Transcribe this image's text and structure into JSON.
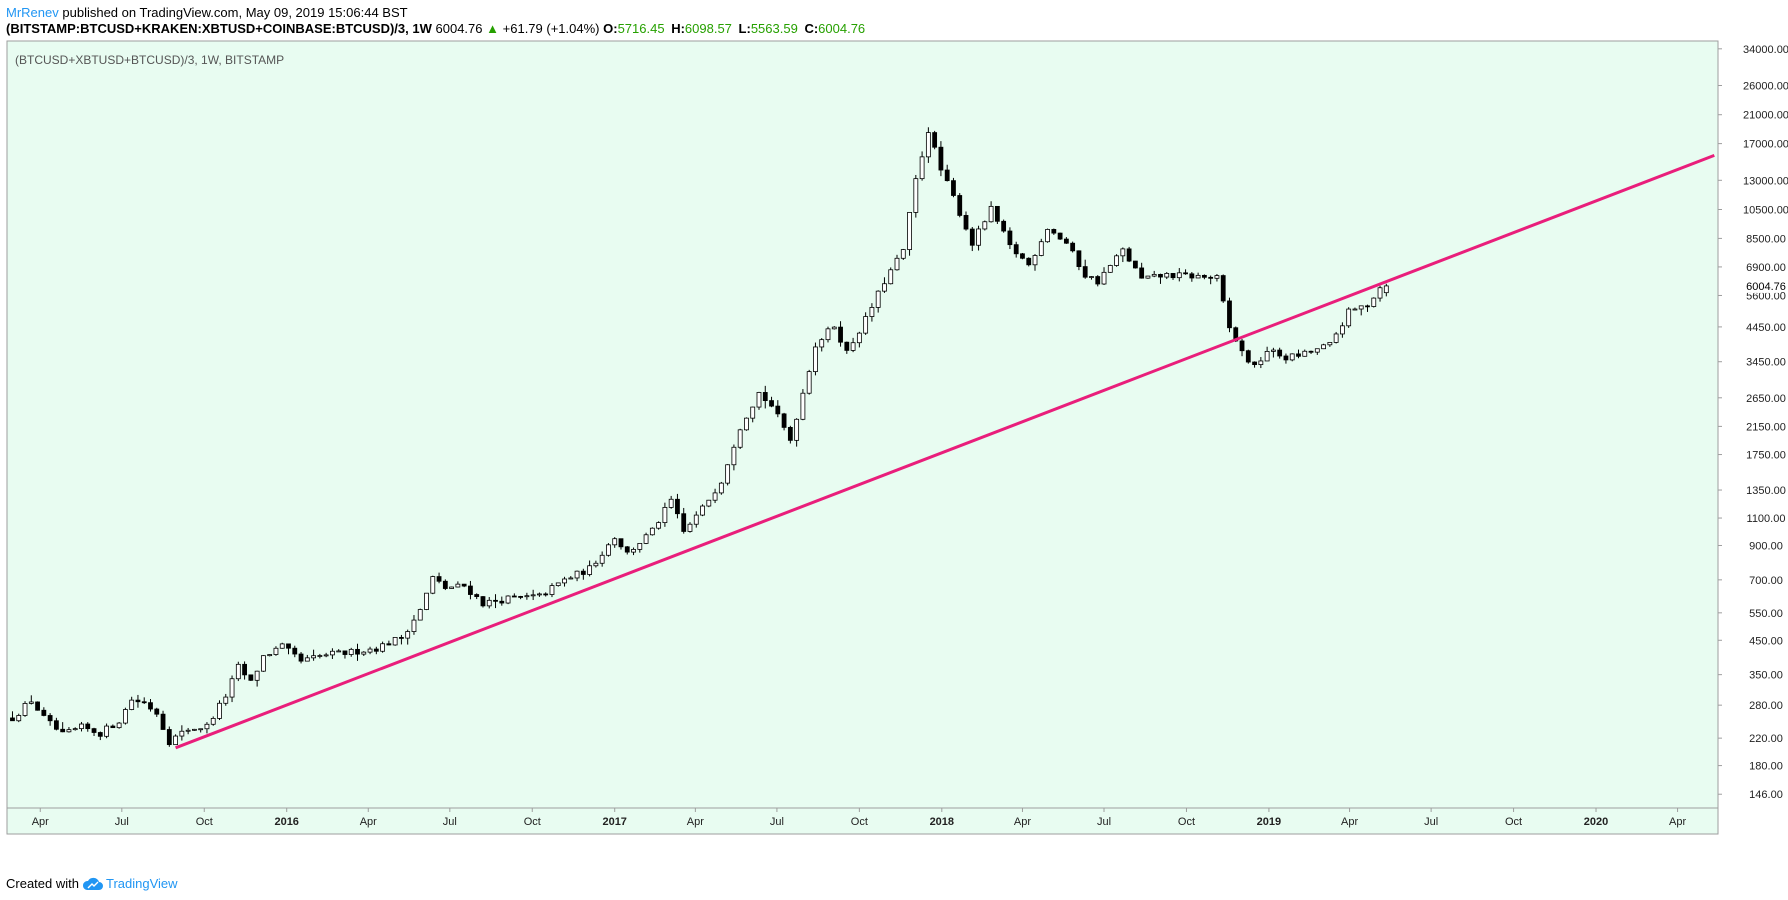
{
  "header": {
    "author": "MrRenev",
    "published_text": "published on TradingView.com, May 09, 2019 15:06:44 BST",
    "symbol": "(BITSTAMP:BTCUSD+KRAKEN:XBTUSD+COINBASE:BTCUSD)/3, 1W",
    "last": "6004.76",
    "change_arrow": "▲",
    "change": "+61.79 (+1.04%)",
    "ohlc": [
      {
        "key": "O:",
        "value": "5716.45"
      },
      {
        "key": "H:",
        "value": "6098.57"
      },
      {
        "key": "L:",
        "value": "5563.59"
      },
      {
        "key": "C:",
        "value": "6004.76"
      }
    ]
  },
  "footer": {
    "created_with": "Created with",
    "brand": "TradingView"
  },
  "colors": {
    "pane_bg": "#e8fcf1",
    "trendline": "#e91e7b",
    "up_candle_fill": "#ffffff",
    "down_candle_fill": "#000000",
    "change_up": "#26a000"
  },
  "chart_data": {
    "type": "candlestick",
    "title": "(BTCUSD+XBTUSD+BTCUSD)/3, 1W, BITSTAMP",
    "interval": "1W",
    "y_scale": "log",
    "ylim": [
      132,
      36000
    ],
    "xlim": [
      "2015-02-24",
      "2020-05-15"
    ],
    "y_ticks": [
      34000,
      26000,
      21000,
      17000,
      13000,
      10500,
      8500,
      6900,
      5600,
      4450,
      3450,
      2650,
      2150,
      1750,
      1350,
      1100,
      900,
      700,
      550,
      450,
      350,
      280,
      220,
      180,
      146
    ],
    "y_tick_labels": [
      "34000.00",
      "26000.00",
      "21000.00",
      "17000.00",
      "13000.00",
      "10500.00",
      "8500.00",
      "6900.00",
      "5600.00",
      "4450.00",
      "3450.00",
      "2650.00",
      "2150.00",
      "1750.00",
      "1350.00",
      "1100.00",
      "900.00",
      "700.00",
      "550.00",
      "450.00",
      "350.00",
      "280.00",
      "220.00",
      "180.00",
      "146.00"
    ],
    "last_price_label": "6004.76",
    "x_ticks": [
      {
        "date": "2015-04-01",
        "label": "Apr",
        "bold": false
      },
      {
        "date": "2015-07-01",
        "label": "Jul",
        "bold": false
      },
      {
        "date": "2015-10-01",
        "label": "Oct",
        "bold": false
      },
      {
        "date": "2016-01-01",
        "label": "2016",
        "bold": true
      },
      {
        "date": "2016-04-01",
        "label": "Apr",
        "bold": false
      },
      {
        "date": "2016-07-01",
        "label": "Jul",
        "bold": false
      },
      {
        "date": "2016-10-01",
        "label": "Oct",
        "bold": false
      },
      {
        "date": "2017-01-01",
        "label": "2017",
        "bold": true
      },
      {
        "date": "2017-04-01",
        "label": "Apr",
        "bold": false
      },
      {
        "date": "2017-07-01",
        "label": "Jul",
        "bold": false
      },
      {
        "date": "2017-10-01",
        "label": "Oct",
        "bold": false
      },
      {
        "date": "2018-01-01",
        "label": "2018",
        "bold": true
      },
      {
        "date": "2018-04-01",
        "label": "Apr",
        "bold": false
      },
      {
        "date": "2018-07-01",
        "label": "Jul",
        "bold": false
      },
      {
        "date": "2018-10-01",
        "label": "Oct",
        "bold": false
      },
      {
        "date": "2019-01-01",
        "label": "2019",
        "bold": true
      },
      {
        "date": "2019-04-01",
        "label": "Apr",
        "bold": false
      },
      {
        "date": "2019-07-01",
        "label": "Jul",
        "bold": false
      },
      {
        "date": "2019-10-01",
        "label": "Oct",
        "bold": false
      },
      {
        "date": "2020-01-01",
        "label": "2020",
        "bold": true
      },
      {
        "date": "2020-04-01",
        "label": "Apr",
        "bold": false
      }
    ],
    "close_anchors": [
      [
        "2015-03-01",
        255
      ],
      [
        "2015-03-22",
        290
      ],
      [
        "2015-04-05",
        255
      ],
      [
        "2015-04-26",
        225
      ],
      [
        "2015-05-17",
        238
      ],
      [
        "2015-06-07",
        228
      ],
      [
        "2015-06-28",
        250
      ],
      [
        "2015-07-12",
        292
      ],
      [
        "2015-07-26",
        285
      ],
      [
        "2015-08-09",
        265
      ],
      [
        "2015-08-23",
        215
      ],
      [
        "2015-09-13",
        235
      ],
      [
        "2015-10-04",
        240
      ],
      [
        "2015-10-25",
        300
      ],
      [
        "2015-11-08",
        370
      ],
      [
        "2015-11-22",
        330
      ],
      [
        "2015-12-06",
        400
      ],
      [
        "2015-12-27",
        430
      ],
      [
        "2016-01-17",
        385
      ],
      [
        "2016-02-14",
        405
      ],
      [
        "2016-03-06",
        410
      ],
      [
        "2016-04-10",
        425
      ],
      [
        "2016-05-08",
        460
      ],
      [
        "2016-05-29",
        560
      ],
      [
        "2016-06-12",
        710
      ],
      [
        "2016-06-26",
        660
      ],
      [
        "2016-07-17",
        670
      ],
      [
        "2016-08-07",
        590
      ],
      [
        "2016-09-04",
        610
      ],
      [
        "2016-10-09",
        620
      ],
      [
        "2016-11-06",
        700
      ],
      [
        "2016-12-04",
        760
      ],
      [
        "2017-01-01",
        960
      ],
      [
        "2017-01-15",
        850
      ],
      [
        "2017-02-12",
        1000
      ],
      [
        "2017-03-05",
        1250
      ],
      [
        "2017-03-19",
        990
      ],
      [
        "2017-04-09",
        1180
      ],
      [
        "2017-04-30",
        1450
      ],
      [
        "2017-05-21",
        2150
      ],
      [
        "2017-06-11",
        2750
      ],
      [
        "2017-06-25",
        2500
      ],
      [
        "2017-07-16",
        1950
      ],
      [
        "2017-07-30",
        2750
      ],
      [
        "2017-08-13",
        3900
      ],
      [
        "2017-09-03",
        4500
      ],
      [
        "2017-09-17",
        3700
      ],
      [
        "2017-10-08",
        4700
      ],
      [
        "2017-10-29",
        6200
      ],
      [
        "2017-11-19",
        7800
      ],
      [
        "2017-12-03",
        13000
      ],
      [
        "2017-12-17",
        18800
      ],
      [
        "2017-12-31",
        14000
      ],
      [
        "2018-01-14",
        11500
      ],
      [
        "2018-02-04",
        8200
      ],
      [
        "2018-02-25",
        10500
      ],
      [
        "2018-03-18",
        8000
      ],
      [
        "2018-04-08",
        7000
      ],
      [
        "2018-04-29",
        9200
      ],
      [
        "2018-05-20",
        8200
      ],
      [
        "2018-06-10",
        6500
      ],
      [
        "2018-06-24",
        6200
      ],
      [
        "2018-07-22",
        7800
      ],
      [
        "2018-08-12",
        6300
      ],
      [
        "2018-09-09",
        6500
      ],
      [
        "2018-10-07",
        6450
      ],
      [
        "2018-11-04",
        6350
      ],
      [
        "2018-11-18",
        4400
      ],
      [
        "2018-12-02",
        3700
      ],
      [
        "2018-12-16",
        3300
      ],
      [
        "2018-12-30",
        3750
      ],
      [
        "2019-01-20",
        3550
      ],
      [
        "2019-02-10",
        3650
      ],
      [
        "2019-03-10",
        3900
      ],
      [
        "2019-03-31",
        4950
      ],
      [
        "2019-04-21",
        5250
      ],
      [
        "2019-05-05",
        5940
      ],
      [
        "2019-05-12",
        6005
      ]
    ],
    "last_candle": {
      "date": "2019-05-12",
      "open": 5716.45,
      "high": 6098.57,
      "low": 5563.59,
      "close": 6004.76
    },
    "trendline": {
      "start": [
        "2015-08-30",
        205
      ],
      "end": [
        "2020-05-12",
        15600
      ]
    }
  }
}
